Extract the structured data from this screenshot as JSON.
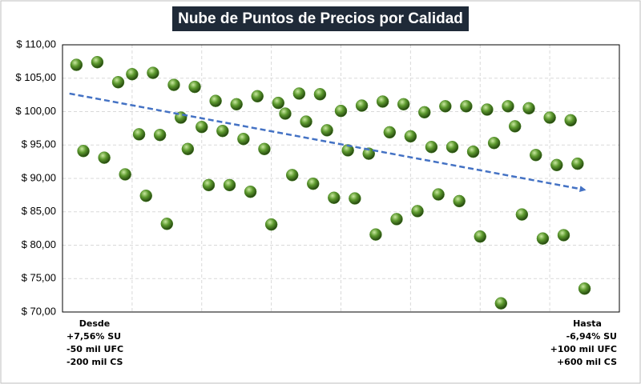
{
  "chart_data": {
    "type": "scatter",
    "title": "Nube de Puntos de Precios por Calidad",
    "x": [
      2,
      3,
      5,
      6,
      8,
      9,
      10,
      11,
      12,
      13,
      14,
      15,
      16,
      17,
      18,
      19,
      20,
      21,
      22,
      23,
      24,
      25,
      26,
      27,
      28,
      29,
      30,
      31,
      32,
      33,
      34,
      35,
      36,
      37,
      38,
      39,
      40,
      41,
      42,
      43,
      44,
      45,
      46,
      47,
      48,
      49,
      50,
      51,
      52,
      53,
      54,
      55,
      56,
      57,
      58,
      59,
      60,
      61,
      62,
      63,
      64,
      65,
      66,
      67,
      68,
      69,
      70,
      71,
      72,
      73,
      74,
      75
    ],
    "series": [
      {
        "color": "#4f8a2a",
        "values": [
          107.0,
          94.1,
          107.4,
          93.1,
          104.4,
          90.6,
          105.6,
          96.6,
          87.4,
          105.8,
          96.5,
          83.2,
          104.0,
          99.1,
          94.4,
          103.7,
          97.7,
          89.0,
          101.6,
          97.1,
          89.0,
          101.1,
          95.9,
          88.0,
          102.3,
          94.4,
          83.1,
          101.3,
          99.7,
          90.5,
          102.7,
          98.5,
          89.2,
          102.6,
          97.2,
          87.1,
          100.1,
          94.2,
          87.0,
          100.9,
          93.7,
          81.6,
          101.5,
          96.9,
          83.9,
          101.1,
          96.3,
          85.1,
          99.9,
          94.7,
          87.6,
          100.8,
          94.7,
          86.6,
          100.8,
          94.0,
          81.3,
          100.3,
          95.3,
          71.3,
          100.8,
          97.8,
          84.6,
          100.5,
          93.5,
          81.0,
          99.1,
          92.0,
          81.5,
          98.7,
          92.2,
          73.5
        ]
      }
    ],
    "trendline": {
      "x": [
        1,
        75
      ],
      "values": [
        102.7,
        88.3
      ],
      "color": "#4472c4"
    },
    "xlim": [
      0,
      80
    ],
    "xticks": [
      0,
      10,
      20,
      30,
      40,
      50,
      60,
      70,
      80
    ],
    "ylim": [
      70,
      110
    ],
    "yticks": [
      {
        "value": 70,
        "label": "$ 70,00"
      },
      {
        "value": 75,
        "label": "$ 75,00"
      },
      {
        "value": 80,
        "label": "$ 80,00"
      },
      {
        "value": 85,
        "label": "$ 85,00"
      },
      {
        "value": 90,
        "label": "$ 90,00"
      },
      {
        "value": 95,
        "label": "$ 95,00"
      },
      {
        "value": 100,
        "label": "$ 100,00"
      },
      {
        "value": 105,
        "label": "$ 105,00"
      },
      {
        "value": 110,
        "label": "$ 110,00"
      }
    ],
    "grid": true,
    "annotations": {
      "left": [
        "Desde",
        "+7,56% SU",
        "-50 mil UFC",
        "-200 mil CS"
      ],
      "right": [
        "Hasta",
        "-6,94% SU",
        "+100 mil UFC",
        "+600 mil CS"
      ]
    }
  }
}
